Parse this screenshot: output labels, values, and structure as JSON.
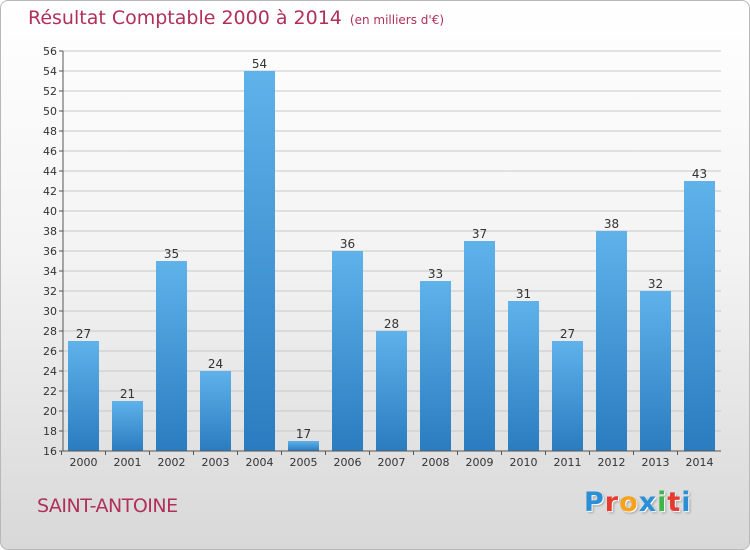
{
  "page": {
    "title": "Résultat Comptable 2000 à 2014",
    "subtitle": "(en milliers d'€)",
    "town": "SAINT-ANTOINE",
    "logo": {
      "letters": [
        "P",
        "r",
        "o",
        "x",
        "i",
        "t",
        "i"
      ],
      "colors": [
        "#2a8fd6",
        "#e63a2e",
        "#f7a21b",
        "#2a8fd6",
        "#3cb54a",
        "#e63a2e",
        "#2a8fd6"
      ]
    }
  },
  "colors": {
    "bar": "#3a95d8",
    "bar_light": "#5fb2ea",
    "bar_dark": "#2a7cc0",
    "title": "#b0305a",
    "grid": "#c8c8c8"
  },
  "chart_data": {
    "type": "bar",
    "title": "Résultat Comptable 2000 à 2014",
    "categories": [
      "2000",
      "2001",
      "2002",
      "2003",
      "2004",
      "2005",
      "2006",
      "2007",
      "2008",
      "2009",
      "2010",
      "2011",
      "2012",
      "2013",
      "2014"
    ],
    "values": [
      27,
      21,
      35,
      24,
      54,
      17,
      36,
      28,
      33,
      37,
      31,
      27,
      38,
      32,
      43
    ],
    "ylim": [
      16,
      56
    ],
    "yticks": [
      16,
      18,
      20,
      22,
      24,
      26,
      28,
      30,
      32,
      34,
      36,
      38,
      40,
      42,
      44,
      46,
      48,
      50,
      52,
      54,
      56
    ],
    "grid": true,
    "legend": "none"
  }
}
